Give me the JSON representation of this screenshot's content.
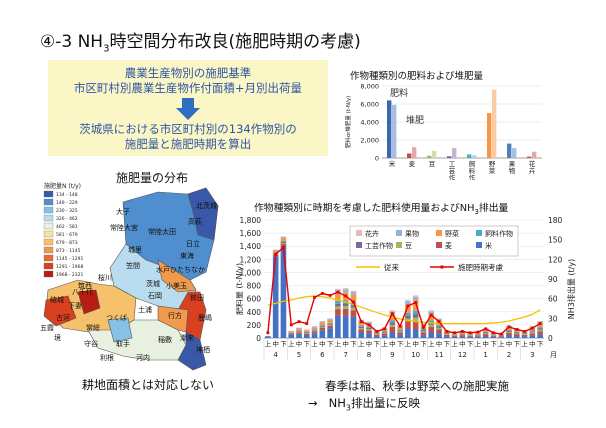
{
  "slide_title": {
    "prefix": "④-3 NH",
    "sub": "3",
    "suffix": "時空間分布改良(施肥時期の考慮)"
  },
  "process_box": {
    "line1": "農業生産物別の施肥基準",
    "line2": "市区町村別農業生産物作付面積+月別出荷量",
    "line3": "茨城県における市区町村別の134作物別の",
    "line4": "施肥量と施肥時期を算出",
    "colors": {
      "background": "#fbf6c6",
      "text": "#2f55a3",
      "arrow": "#2e6fc4"
    }
  },
  "map": {
    "heading": "施肥量の分布",
    "legend_title": "施肥量N (t/y)",
    "legend_items": [
      {
        "range": "134 - 148",
        "color": "#3a58a8"
      },
      {
        "range": "149 - 229",
        "color": "#4f8fd0"
      },
      {
        "range": "230 - 325",
        "color": "#86c1e6"
      },
      {
        "range": "326 - 462",
        "color": "#b9dcef"
      },
      {
        "range": "462 - 581",
        "color": "#e8f0e0"
      },
      {
        "range": "581 - 679",
        "color": "#f7e39c"
      },
      {
        "range": "679 - 873",
        "color": "#f5c26b"
      },
      {
        "range": "873 - 1145",
        "color": "#f09a4e"
      },
      {
        "range": "1145 - 1291",
        "color": "#e76b35"
      },
      {
        "range": "1291 - 1968",
        "color": "#d9401f"
      },
      {
        "range": "1968 - 2321",
        "color": "#b81c13"
      }
    ],
    "place_labels": [
      "大子",
      "北茨城",
      "高萩",
      "常陸大宮",
      "常陸太田",
      "日立",
      "城里",
      "東海",
      "ひたちなか",
      "水戸",
      "笠間",
      "茨城",
      "鉾田",
      "石岡",
      "筑西",
      "桜川",
      "結城",
      "下妻",
      "八千代",
      "つくば",
      "土浦",
      "古河",
      "五霞",
      "境",
      "常総",
      "守谷",
      "取手",
      "利根",
      "河内",
      "稲敷",
      "神栖",
      "潮来",
      "小美玉",
      "行方",
      "鹿嶋"
    ],
    "caption": "耕地面積とは対応しない"
  },
  "chart_data": [
    {
      "type": "bar",
      "title": "作物種類別の肥料および堆肥量",
      "ylabel": "肥料or堆肥量 (t-N/y)",
      "ylim": [
        0,
        8000
      ],
      "yticks": [
        "0",
        "2,000",
        "4,000",
        "6,000",
        "8,000"
      ],
      "categories": [
        "米",
        "麦",
        "豆",
        "工芸作物",
        "飼料作物",
        "野菜",
        "果物",
        "花卉"
      ],
      "series": [
        {
          "name": "肥料",
          "values": [
            6400,
            500,
            250,
            200,
            400,
            5000,
            1600,
            150
          ],
          "color_by_category": [
            "#3b66b0",
            "#c0504d",
            "#9bbb59",
            "#8064a2",
            "#4bacc6",
            "#f79646",
            "#4f81bd",
            "#c0504d"
          ]
        },
        {
          "name": "堆肥",
          "values": [
            5900,
            1200,
            800,
            1100,
            300,
            7600,
            1100,
            700
          ],
          "color_by_category": [
            "#aabde0",
            "#e6a8a6",
            "#cfe0ac",
            "#c4b4d4",
            "#a8d8e6",
            "#fbcba2",
            "#a7c0df",
            "#e6a8a6"
          ]
        }
      ]
    },
    {
      "type": "bar",
      "title": "作物種類別に時期を考慮した肥料使用量およびNH3排出量",
      "title_parts": {
        "prefix": "作物種類別に時期を考慮した肥料使用量およびNH",
        "sub": "3",
        "suffix": "排出量"
      },
      "ylabel": "肥料量 (t-N/y)",
      "y2label": {
        "prefix": "NH",
        "sub": "3",
        "suffix": "排出量 (t/y)"
      },
      "ylim": [
        0,
        1800
      ],
      "y2lim": [
        0,
        180
      ],
      "yticks": [
        "0",
        "200",
        "400",
        "600",
        "800",
        "1,000",
        "1,200",
        "1,400",
        "1,600",
        "1,800"
      ],
      "y2ticks": [
        "0",
        "30",
        "60",
        "90",
        "120",
        "150",
        "180"
      ],
      "xunit": "月",
      "thirds": [
        "上",
        "中",
        "下"
      ],
      "months": [
        "4",
        "5",
        "6",
        "7",
        "8",
        "9",
        "10",
        "11",
        "12",
        "1",
        "2",
        "3"
      ],
      "legend": [
        "花卉",
        "果物",
        "野菜",
        "飼料作物",
        "工芸作物",
        "豆",
        "麦",
        "米"
      ],
      "stack_order": [
        "米",
        "麦",
        "豆",
        "工芸作物",
        "飼料作物",
        "野菜",
        "果物",
        "花卉"
      ],
      "series_colors": {
        "米": "#4472c4",
        "麦": "#c0504d",
        "豆": "#9bbb59",
        "工芸作物": "#8064a2",
        "飼料作物": "#4bacc6",
        "野菜": "#f79646",
        "果物": "#95b3d7",
        "花卉": "#e6b8b7"
      },
      "bar_totals": [
        30,
        1350,
        1550,
        110,
        160,
        130,
        180,
        260,
        300,
        750,
        760,
        720,
        280,
        250,
        120,
        160,
        420,
        200,
        580,
        650,
        220,
        420,
        300,
        120,
        80,
        110,
        90,
        100,
        150,
        90,
        70,
        190,
        150,
        120,
        180,
        260
      ],
      "rice_share": [
        0.9,
        0.92,
        0.9,
        0.5,
        0.4,
        0.35,
        0.4,
        0.45,
        0.5,
        0.45,
        0.45,
        0.45,
        0.3,
        0.3,
        0.2,
        0.25,
        0.2,
        0.25,
        0.25,
        0.2,
        0.2,
        0.2,
        0.25,
        0.2,
        0.2,
        0.2,
        0.2,
        0.2,
        0.2,
        0.2,
        0.2,
        0.2,
        0.2,
        0.2,
        0.2,
        0.2
      ],
      "lines": [
        {
          "name": "従来",
          "color": "#f5c000",
          "values": [
            50,
            53,
            56,
            58,
            61,
            63,
            64,
            63,
            61,
            58,
            55,
            51,
            47,
            43,
            39,
            35,
            32,
            29,
            27,
            25,
            24,
            23,
            22,
            22,
            22,
            22,
            22,
            22,
            22,
            23,
            24,
            26,
            29,
            32,
            36,
            43
          ]
        },
        {
          "name": "施肥時期考慮",
          "color": "#e60000",
          "values": [
            8,
            128,
            138,
            20,
            25,
            22,
            62,
            68,
            65,
            70,
            64,
            55,
            25,
            20,
            10,
            14,
            37,
            18,
            49,
            54,
            16,
            35,
            25,
            10,
            8,
            10,
            8,
            9,
            14,
            8,
            6,
            17,
            13,
            10,
            15,
            22
          ]
        }
      ]
    }
  ],
  "footer": {
    "line1": "春季は稲、秋季は野菜への施肥実施",
    "arrow": "→",
    "line2_prefix": "NH",
    "line2_sub": "3",
    "line2_suffix": "排出量に反映"
  }
}
